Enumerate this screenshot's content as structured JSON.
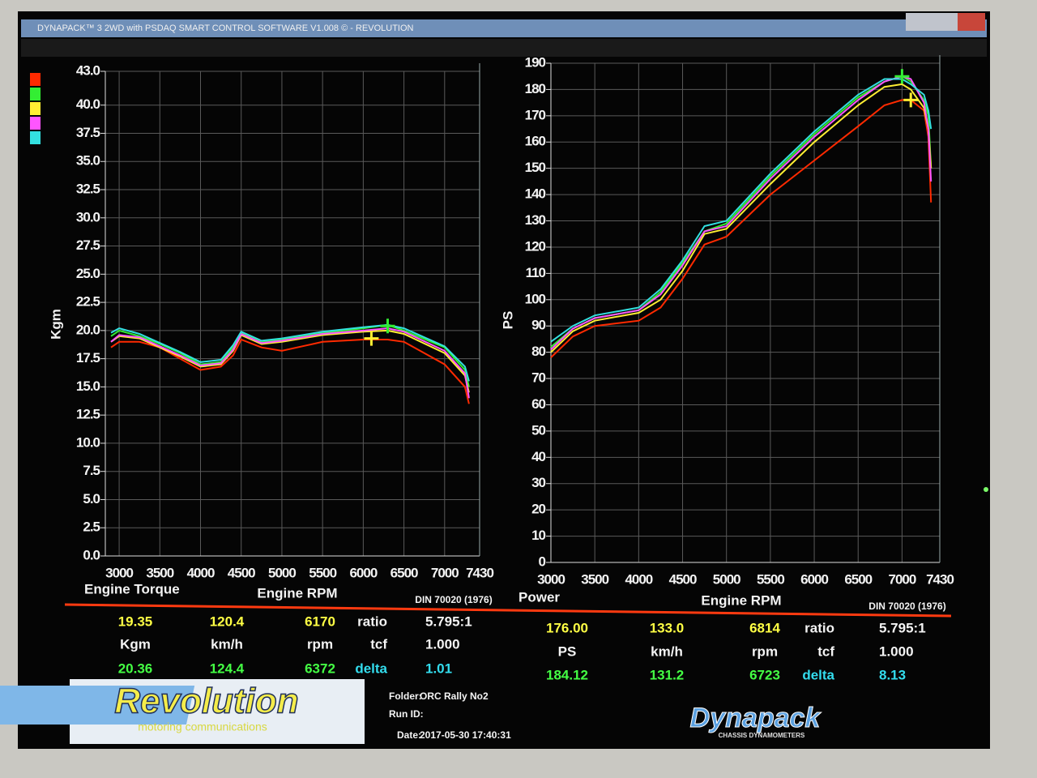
{
  "window_title": "DYNAPACK™ 3 2WD with PSDAQ SMART CONTROL SOFTWARE V1.008 © - REVOLUTION",
  "chart_data": [
    {
      "type": "line",
      "ylabel": "Kgm",
      "corner_label": "Engine Torque",
      "xlabel": "Engine RPM",
      "note": "DIN 70020 (1976)",
      "x": [
        2900,
        3000,
        3250,
        3500,
        3750,
        4000,
        4250,
        4400,
        4500,
        4750,
        5000,
        5500,
        6000,
        6300,
        6500,
        7000,
        7250,
        7300
      ],
      "series": [
        {
          "color": "#ff2a00",
          "values": [
            18.5,
            19,
            19,
            18.5,
            17.5,
            16.5,
            16.8,
            17.8,
            19.2,
            18.5,
            18.2,
            19,
            19.2,
            19.2,
            19,
            17,
            15,
            13.5
          ]
        },
        {
          "color": "#33ee33",
          "values": [
            19.5,
            20,
            19.5,
            18.8,
            18,
            17,
            17.2,
            18.5,
            19.8,
            19,
            19.2,
            19.8,
            20.2,
            20.5,
            20,
            18.5,
            16.5,
            15
          ]
        },
        {
          "color": "#ffee33",
          "values": [
            19,
            19.5,
            19.3,
            18.5,
            17.7,
            16.8,
            17,
            18.2,
            19.6,
            18.8,
            19,
            19.6,
            19.9,
            20,
            19.7,
            18,
            16,
            14.5
          ]
        },
        {
          "color": "#ff55ff",
          "values": [
            19,
            19.6,
            19.4,
            18.6,
            17.8,
            16.9,
            17.1,
            18.3,
            19.7,
            18.9,
            19.1,
            19.7,
            20,
            20.2,
            19.9,
            18.2,
            16.2,
            14
          ]
        },
        {
          "color": "#33e0e0",
          "values": [
            19.8,
            20.2,
            19.7,
            18.9,
            18.1,
            17.2,
            17.4,
            18.7,
            19.9,
            19.1,
            19.3,
            19.9,
            20.3,
            20.5,
            20.2,
            18.6,
            16.8,
            15.5
          ]
        }
      ],
      "markers": [
        {
          "x": 6100,
          "y": 19.3,
          "color": "#ffee33"
        },
        {
          "x": 6300,
          "y": 20.4,
          "color": "#33ee33"
        }
      ],
      "xlim": [
        2830,
        7430
      ],
      "xticks": [
        3000,
        3500,
        4000,
        4500,
        5000,
        5500,
        6000,
        6500,
        7000,
        7430
      ],
      "ylim": [
        0,
        43
      ],
      "yticks": [
        {
          "value": 0,
          "label": "0.0"
        },
        2.5,
        {
          "value": 5,
          "label": "5.0"
        },
        7.5,
        {
          "value": 10,
          "label": "10.0"
        },
        12.5,
        {
          "value": 15,
          "label": "15.0"
        },
        17.5,
        {
          "value": 20,
          "label": "20.0"
        },
        22.5,
        {
          "value": 25,
          "label": "25.0"
        },
        27.5,
        {
          "value": 30,
          "label": "30.0"
        },
        32.5,
        {
          "value": 35,
          "label": "35.0"
        },
        37.5,
        {
          "value": 40,
          "label": "40.0"
        },
        {
          "value": 43,
          "label": "43.0"
        }
      ],
      "grid": true
    },
    {
      "type": "line",
      "ylabel": "PS",
      "corner_label": "Power",
      "xlabel": "Engine RPM",
      "note": "DIN 70020 (1976)",
      "x": [
        3000,
        3250,
        3500,
        4000,
        4250,
        4500,
        4750,
        5000,
        5500,
        6000,
        6500,
        6800,
        7000,
        7100,
        7250,
        7300,
        7330
      ],
      "series": [
        {
          "color": "#ff2a00",
          "values": [
            78,
            86,
            90,
            92,
            97,
            108,
            121,
            124,
            140,
            153,
            166,
            174,
            176,
            176,
            172,
            162,
            137
          ]
        },
        {
          "color": "#33ee33",
          "values": [
            82,
            89,
            93,
            96,
            103,
            114,
            126,
            129,
            147,
            163,
            177,
            183,
            185,
            183,
            176,
            170,
            150
          ]
        },
        {
          "color": "#ffee33",
          "values": [
            80,
            88,
            92,
            95,
            100,
            111,
            125,
            127,
            144,
            160,
            174,
            181,
            182,
            180,
            173,
            165,
            150
          ]
        },
        {
          "color": "#ff55ff",
          "values": [
            81,
            89,
            93,
            96,
            102,
            113,
            126,
            128,
            146,
            162,
            176,
            183,
            185,
            184,
            175,
            165,
            145
          ]
        },
        {
          "color": "#33e0e0",
          "values": [
            84,
            90,
            94,
            97,
            104,
            115,
            128,
            130,
            148,
            164,
            178,
            184,
            184,
            182,
            178,
            172,
            165
          ]
        }
      ],
      "markers": [
        {
          "x": 7100,
          "y": 176,
          "color": "#ffee33"
        },
        {
          "x": 7000,
          "y": 185,
          "color": "#33ee33"
        }
      ],
      "xlim": [
        3000,
        7430
      ],
      "xticks": [
        3000,
        3500,
        4000,
        4500,
        5000,
        5500,
        6000,
        6500,
        7000,
        7430
      ],
      "ylim": [
        0,
        190
      ],
      "yticks": [
        0,
        10,
        20,
        30,
        40,
        50,
        60,
        70,
        80,
        90,
        100,
        110,
        120,
        130,
        140,
        150,
        160,
        170,
        180,
        190
      ],
      "grid": true
    }
  ],
  "stats": {
    "left": [
      [
        "19.35",
        "120.4",
        "6170",
        "ratio",
        "5.795:1"
      ],
      [
        "Kgm",
        "km/h",
        "rpm",
        "tcf",
        "1.000"
      ],
      [
        "20.36",
        "124.4",
        "6372",
        "delta",
        "1.01"
      ]
    ],
    "right": [
      [
        "176.00",
        "133.0",
        "6814",
        "ratio",
        "5.795:1"
      ],
      [
        "PS",
        "km/h",
        "rpm",
        "tcf",
        "1.000"
      ],
      [
        "184.12",
        "131.2",
        "6723",
        "delta",
        "8.13"
      ]
    ]
  },
  "footer": {
    "logo": "Revolution",
    "logo_sub": "motoring communications",
    "folder_label": "Folder:",
    "folder": "ORC Rally No2",
    "run_label": "Run ID:",
    "date_label": "Date:",
    "date": "2017-05-30 17:40:31",
    "brand": "Dynapack",
    "brand_sub": "CHASSIS DYNAMOMETERS"
  }
}
